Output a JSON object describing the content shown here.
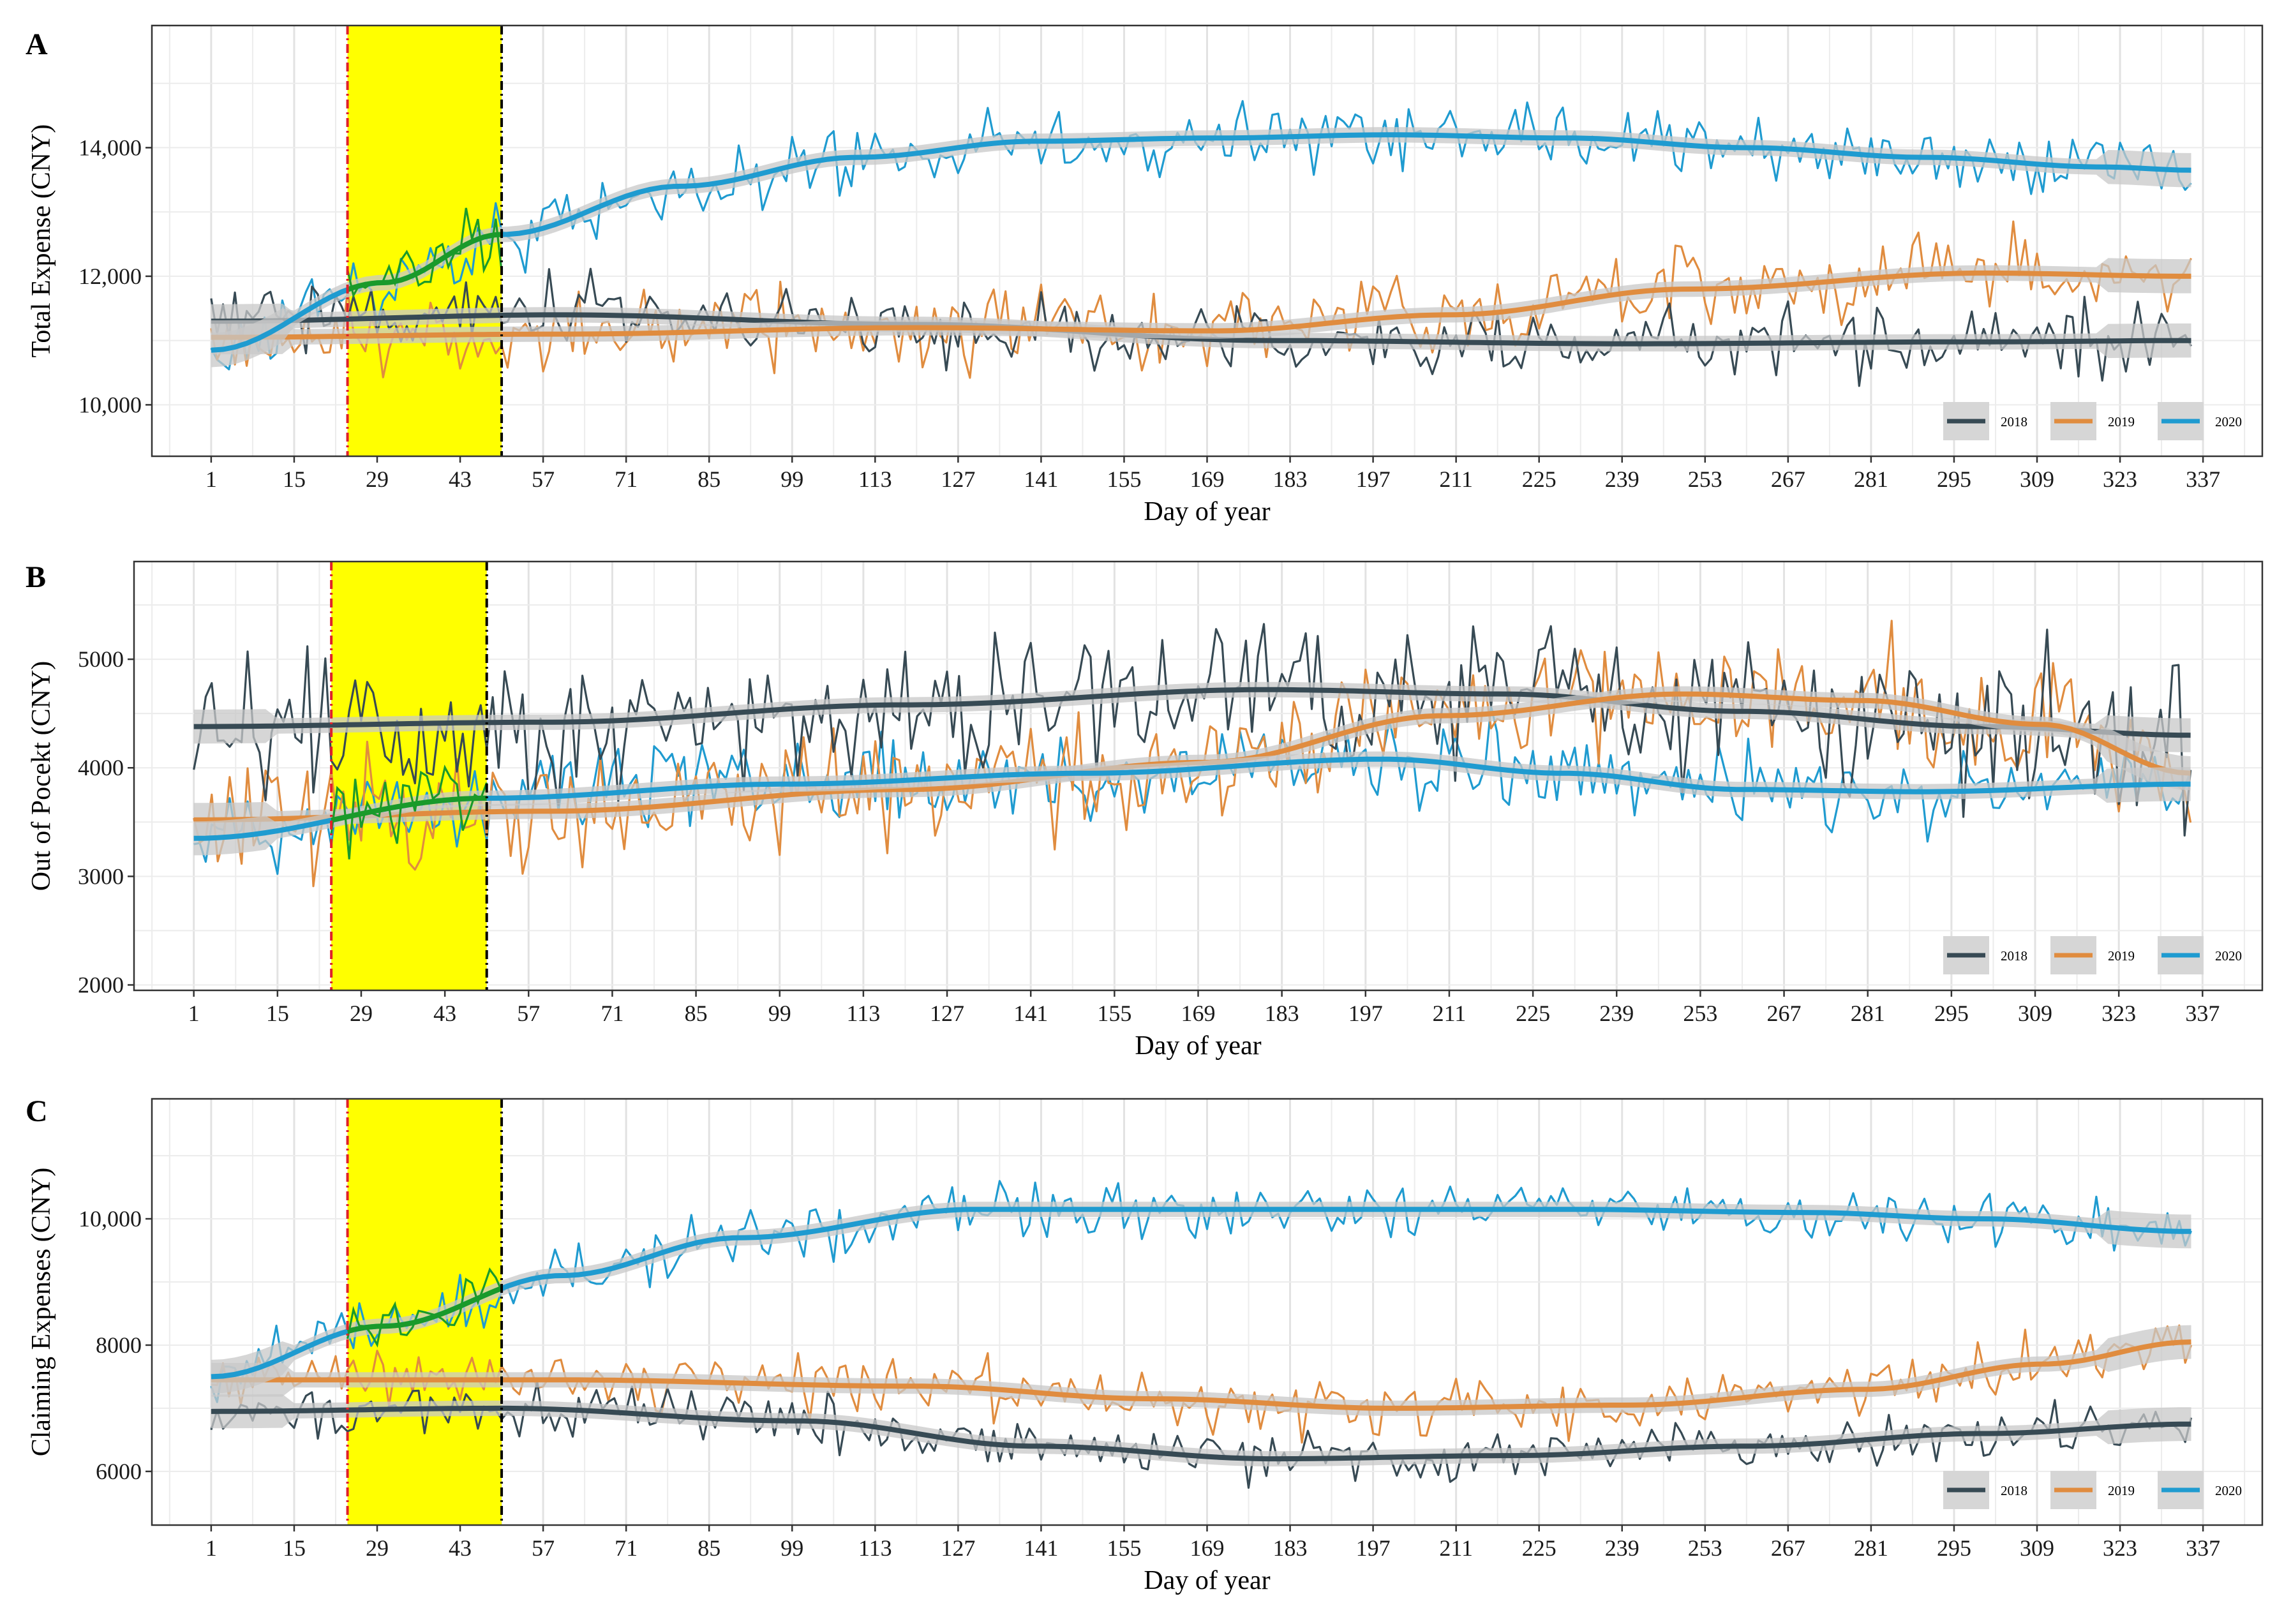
{
  "colors": {
    "y2018": "#374a54",
    "y2019": "#e08c3f",
    "y2020": "#1f9bd0",
    "highlight": "#ffff00",
    "overlap": "#1a9a2a",
    "red_line": "#e0202a",
    "black_line": "#000000",
    "ribbon": "#c8c8c8",
    "grid": "#ececec"
  },
  "highlight_window": {
    "start_day": 24,
    "end_day": 50
  },
  "legend_labels": [
    "2018",
    "2019",
    "2020"
  ],
  "x_ticks": [
    1,
    15,
    29,
    43,
    57,
    71,
    85,
    99,
    113,
    127,
    141,
    155,
    169,
    183,
    197,
    211,
    225,
    239,
    253,
    267,
    281,
    295,
    309,
    323,
    337
  ],
  "chart_data": [
    {
      "type": "line",
      "panel": "A",
      "ylabel": "Total Expense (CNY)",
      "xlabel": "Day of year",
      "xlim": [
        -9,
        347
      ],
      "ylim": [
        9200,
        15900
      ],
      "y_ticks": [
        10000,
        12000,
        14000
      ],
      "y_tick_labels": [
        "10,000",
        "12,000",
        "14,000"
      ],
      "series": [
        {
          "name": "2018",
          "trend_days": [
            1,
            60,
            120,
            180,
            240,
            300,
            335
          ],
          "trend_values": [
            11300,
            11400,
            11250,
            11000,
            10950,
            10980,
            11000
          ],
          "noise": 500
        },
        {
          "name": "2019",
          "trend_days": [
            1,
            60,
            120,
            170,
            210,
            250,
            300,
            335
          ],
          "trend_values": [
            11050,
            11100,
            11200,
            11150,
            11400,
            11800,
            12050,
            12000
          ],
          "noise": 550
        },
        {
          "name": "2020",
          "trend_days": [
            1,
            30,
            50,
            80,
            110,
            140,
            170,
            200,
            230,
            260,
            290,
            320,
            335
          ],
          "trend_values": [
            10850,
            11900,
            12650,
            13400,
            13850,
            14100,
            14150,
            14200,
            14150,
            14000,
            13850,
            13700,
            13650
          ],
          "noise": 450
        }
      ]
    },
    {
      "type": "line",
      "panel": "B",
      "ylabel": "Out of Pocekt (CNY)",
      "xlabel": "Day of year",
      "xlim": [
        -9,
        347
      ],
      "ylim": [
        1950,
        5900
      ],
      "y_ticks": [
        2000,
        3000,
        4000,
        5000
      ],
      "y_tick_labels": [
        "2000",
        "3000",
        "4000",
        "5000"
      ],
      "series": [
        {
          "name": "2018",
          "trend_days": [
            1,
            60,
            120,
            180,
            220,
            260,
            300,
            335
          ],
          "trend_values": [
            4380,
            4420,
            4580,
            4720,
            4680,
            4520,
            4380,
            4300
          ],
          "noise": 650
        },
        {
          "name": "2019",
          "trend_days": [
            1,
            60,
            120,
            170,
            210,
            250,
            280,
            310,
            335
          ],
          "trend_values": [
            3520,
            3600,
            3800,
            4050,
            4480,
            4680,
            4620,
            4400,
            3950
          ],
          "noise": 500
        },
        {
          "name": "2020",
          "trend_days": [
            1,
            50,
            100,
            150,
            200,
            230,
            260,
            290,
            335
          ],
          "trend_values": [
            3350,
            3720,
            3850,
            3950,
            4080,
            3950,
            3800,
            3780,
            3850
          ],
          "noise": 350
        }
      ]
    },
    {
      "type": "line",
      "panel": "C",
      "ylabel": "Claiming Expenses (CNY)",
      "xlabel": "Day of year",
      "xlim": [
        -9,
        347
      ],
      "ylim": [
        5150,
        11900
      ],
      "y_ticks": [
        6000,
        8000,
        10000
      ],
      "y_tick_labels": [
        "6000",
        "8000",
        "10,000"
      ],
      "series": [
        {
          "name": "2018",
          "trend_days": [
            1,
            50,
            100,
            140,
            180,
            220,
            260,
            300,
            335
          ],
          "trend_values": [
            6950,
            7000,
            6800,
            6400,
            6200,
            6250,
            6400,
            6600,
            6750
          ],
          "noise": 350
        },
        {
          "name": "2019",
          "trend_days": [
            1,
            60,
            120,
            160,
            200,
            240,
            280,
            310,
            335
          ],
          "trend_values": [
            7450,
            7450,
            7350,
            7150,
            7000,
            7050,
            7300,
            7700,
            8050
          ],
          "noise": 400
        },
        {
          "name": "2020",
          "trend_days": [
            1,
            30,
            60,
            90,
            130,
            180,
            230,
            270,
            300,
            335
          ],
          "trend_values": [
            7500,
            8300,
            9100,
            9700,
            10150,
            10150,
            10150,
            10100,
            10000,
            9800
          ],
          "noise": 400
        }
      ]
    }
  ]
}
